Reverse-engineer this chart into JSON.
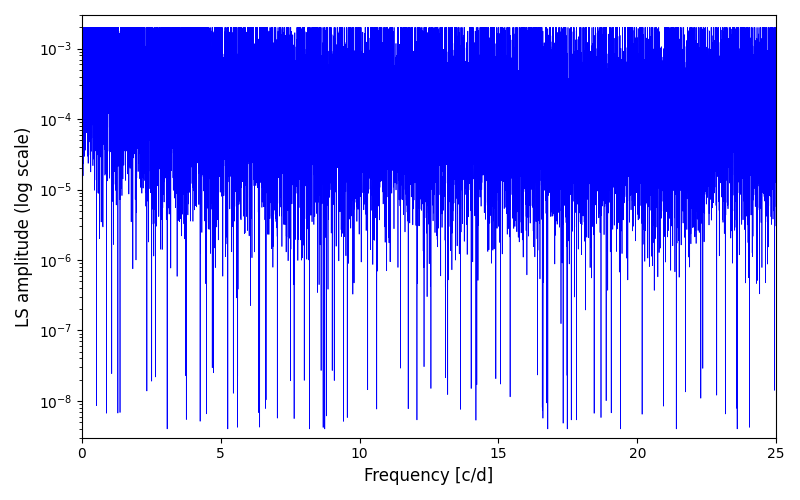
{
  "title": "",
  "xlabel": "Frequency [c/d]",
  "ylabel": "LS amplitude (log scale)",
  "xlim": [
    0,
    25
  ],
  "ylim": [
    3e-09,
    0.003
  ],
  "yscale": "log",
  "line_color": "blue",
  "background_color": "#ffffff",
  "freq_min": 0.0,
  "freq_max": 25.0,
  "n_points": 15000,
  "seed": 7,
  "base_log_mean": -4.0,
  "base_log_std": 0.8,
  "low_freq_boost": 1.5,
  "low_freq_decay": 0.15
}
